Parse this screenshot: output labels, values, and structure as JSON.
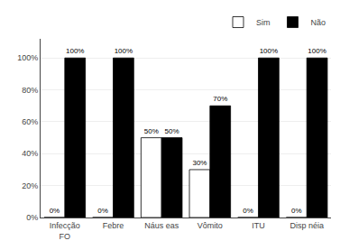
{
  "chart_data": {
    "type": "bar",
    "categories": [
      "Infecção\nFO",
      "Febre",
      "Náus eas",
      "Vômito",
      "ITU",
      "Disp néia"
    ],
    "series": [
      {
        "name": "Sim",
        "color": "#ffffff",
        "values": [
          0,
          0,
          50,
          30,
          0,
          0
        ],
        "value_labels": [
          "0%",
          "0%",
          "50%",
          "30%",
          "0%",
          "0%"
        ]
      },
      {
        "name": "Não",
        "color": "#000000",
        "values": [
          100,
          100,
          50,
          70,
          100,
          100
        ],
        "value_labels": [
          "100%",
          "100%",
          "50%",
          "70%",
          "100%",
          "100%"
        ]
      }
    ],
    "ylim": [
      0,
      112
    ],
    "yticks": [
      {
        "value": 0,
        "label": "0%"
      },
      {
        "value": 20,
        "label": "20%"
      },
      {
        "value": 40,
        "label": "40%"
      },
      {
        "value": 60,
        "label": "60%"
      },
      {
        "value": 80,
        "label": "80%"
      },
      {
        "value": 100,
        "label": "100%"
      }
    ],
    "grid": true,
    "data_labels": true,
    "legend": "top"
  }
}
